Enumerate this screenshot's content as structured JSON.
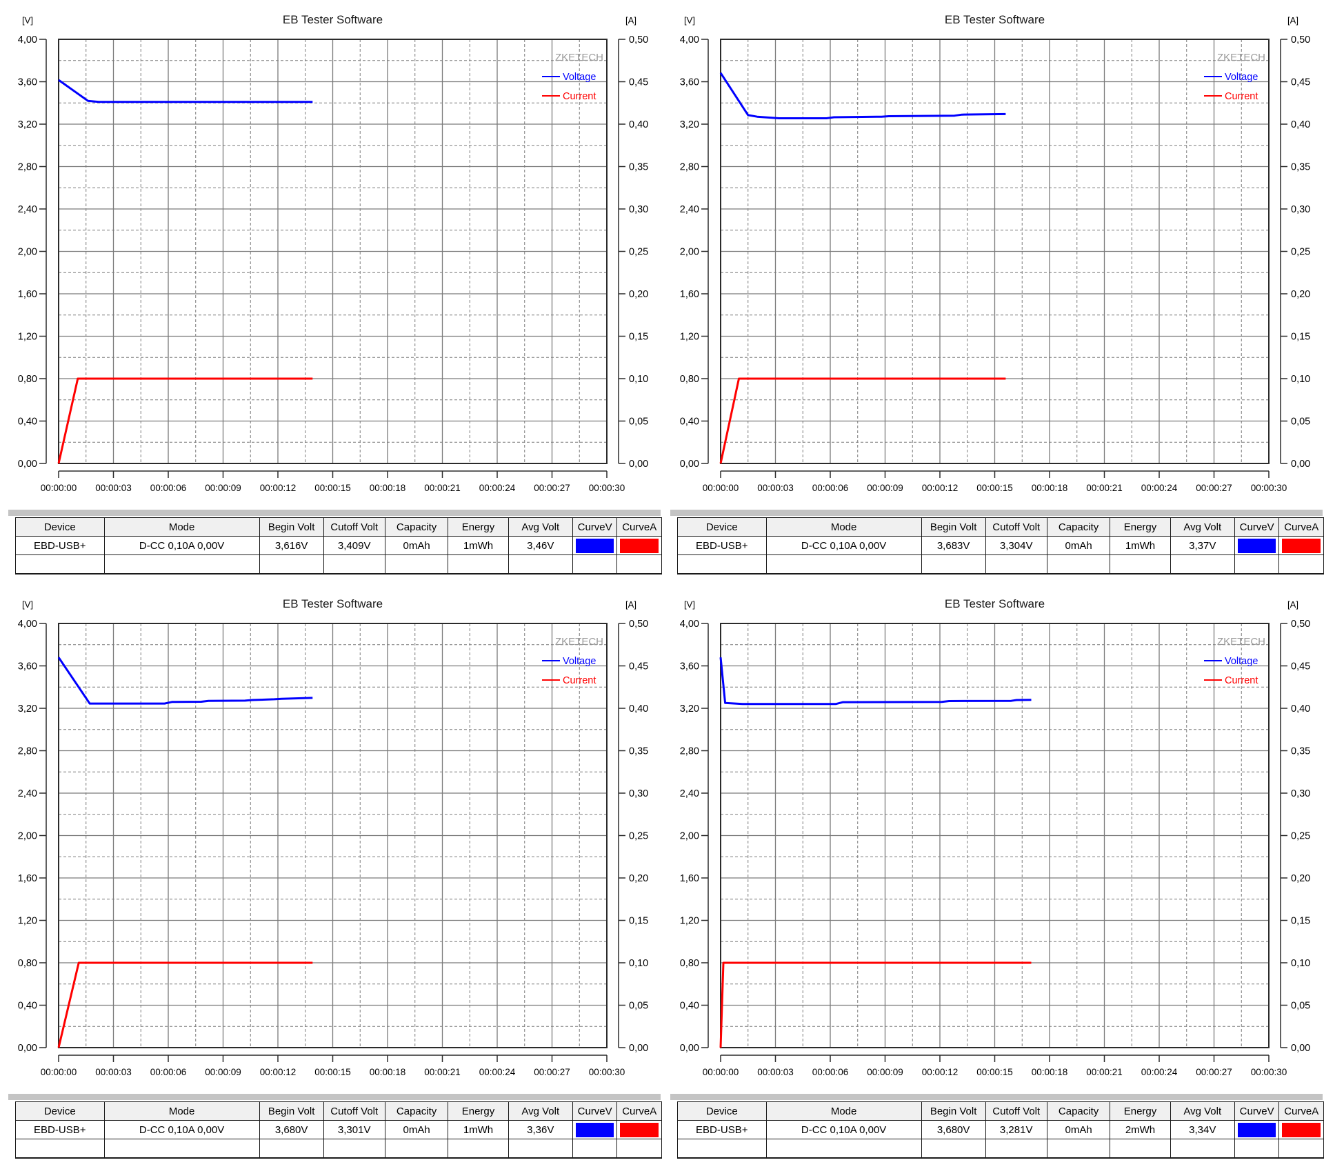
{
  "colors": {
    "voltage": "#0000ff",
    "current": "#ff0000",
    "grid": "#7a7a7a",
    "plot_border": "#2b2b2b",
    "axis_text": "#000000",
    "brand_text": "#9a9a9a",
    "title_text": "#1a1a1a",
    "table_header_bg": "#f0f0f0",
    "table_strip": "#c4c4c4"
  },
  "chart_data": [
    {
      "type": "line",
      "title": "EB Tester Software",
      "left_axis": {
        "unit": "[V]",
        "min": 0,
        "max": 4,
        "major_step": 0.4,
        "minor_step": 0.2
      },
      "right_axis": {
        "unit": "[A]",
        "min": 0,
        "max": 0.5,
        "major_step": 0.05
      },
      "x_axis": {
        "min": 0,
        "max": 30,
        "major_step": 3,
        "minor_step": 1.5,
        "tick_labels": [
          "00:00:00",
          "00:00:03",
          "00:00:06",
          "00:00:09",
          "00:00:12",
          "00:00:15",
          "00:00:18",
          "00:00:21",
          "00:00:24",
          "00:00:27",
          "00:00:30"
        ]
      },
      "legend": {
        "brand": "ZKETECH",
        "position": "top-right",
        "entries": [
          {
            "label": "Voltage",
            "color": "#0000ff"
          },
          {
            "label": "Current",
            "color": "#ff0000"
          }
        ]
      },
      "grid": true,
      "series": [
        {
          "name": "Voltage",
          "axis": "left",
          "color": "#0000ff",
          "points": [
            [
              0,
              3.616
            ],
            [
              1.6,
              3.42
            ],
            [
              2.2,
              3.41
            ],
            [
              13.9,
              3.41
            ]
          ]
        },
        {
          "name": "Current",
          "axis": "right",
          "color": "#ff0000",
          "points": [
            [
              0,
              0
            ],
            [
              1.05,
              0.1
            ],
            [
              13.9,
              0.1
            ]
          ]
        }
      ]
    },
    {
      "type": "line",
      "title": "EB Tester Software",
      "left_axis": {
        "unit": "[V]",
        "min": 0,
        "max": 4,
        "major_step": 0.4,
        "minor_step": 0.2
      },
      "right_axis": {
        "unit": "[A]",
        "min": 0,
        "max": 0.5,
        "major_step": 0.05
      },
      "x_axis": {
        "min": 0,
        "max": 30,
        "major_step": 3,
        "minor_step": 1.5,
        "tick_labels": [
          "00:00:00",
          "00:00:03",
          "00:00:06",
          "00:00:09",
          "00:00:12",
          "00:00:15",
          "00:00:18",
          "00:00:21",
          "00:00:24",
          "00:00:27",
          "00:00:30"
        ]
      },
      "legend": {
        "brand": "ZKETECH",
        "position": "top-right",
        "entries": [
          {
            "label": "Voltage",
            "color": "#0000ff"
          },
          {
            "label": "Current",
            "color": "#ff0000"
          }
        ]
      },
      "grid": true,
      "series": [
        {
          "name": "Voltage",
          "axis": "left",
          "color": "#0000ff",
          "points": [
            [
              0,
              3.683
            ],
            [
              1.5,
              3.285
            ],
            [
              2.0,
              3.27
            ],
            [
              2.8,
              3.26
            ],
            [
              3.2,
              3.255
            ],
            [
              5.8,
              3.255
            ],
            [
              6.2,
              3.265
            ],
            [
              8.8,
              3.27
            ],
            [
              9.2,
              3.275
            ],
            [
              12.8,
              3.28
            ],
            [
              13.2,
              3.29
            ],
            [
              15.6,
              3.295
            ]
          ]
        },
        {
          "name": "Current",
          "axis": "right",
          "color": "#ff0000",
          "points": [
            [
              0,
              0
            ],
            [
              1.0,
              0.1
            ],
            [
              15.6,
              0.1
            ]
          ]
        }
      ]
    },
    {
      "type": "line",
      "title": "EB Tester Software",
      "left_axis": {
        "unit": "[V]",
        "min": 0,
        "max": 4,
        "major_step": 0.4,
        "minor_step": 0.2
      },
      "right_axis": {
        "unit": "[A]",
        "min": 0,
        "max": 0.5,
        "major_step": 0.05
      },
      "x_axis": {
        "min": 0,
        "max": 30,
        "major_step": 3,
        "minor_step": 1.5,
        "tick_labels": [
          "00:00:00",
          "00:00:03",
          "00:00:06",
          "00:00:09",
          "00:00:12",
          "00:00:15",
          "00:00:18",
          "00:00:21",
          "00:00:24",
          "00:00:27",
          "00:00:30"
        ]
      },
      "legend": {
        "brand": "ZKETECH",
        "position": "top-right",
        "entries": [
          {
            "label": "Voltage",
            "color": "#0000ff"
          },
          {
            "label": "Current",
            "color": "#ff0000"
          }
        ]
      },
      "grid": true,
      "series": [
        {
          "name": "Voltage",
          "axis": "left",
          "color": "#0000ff",
          "points": [
            [
              0,
              3.68
            ],
            [
              1.7,
              3.245
            ],
            [
              5.8,
              3.245
            ],
            [
              6.2,
              3.26
            ],
            [
              7.8,
              3.262
            ],
            [
              8.2,
              3.27
            ],
            [
              10.2,
              3.272
            ],
            [
              10.6,
              3.278
            ],
            [
              11.8,
              3.285
            ],
            [
              12.2,
              3.29
            ],
            [
              13.9,
              3.298
            ]
          ]
        },
        {
          "name": "Current",
          "axis": "right",
          "color": "#ff0000",
          "points": [
            [
              0,
              0
            ],
            [
              1.1,
              0.1
            ],
            [
              13.9,
              0.1
            ]
          ]
        }
      ]
    },
    {
      "type": "line",
      "title": "EB Tester Software",
      "left_axis": {
        "unit": "[V]",
        "min": 0,
        "max": 4,
        "major_step": 0.4,
        "minor_step": 0.2
      },
      "right_axis": {
        "unit": "[A]",
        "min": 0,
        "max": 0.5,
        "major_step": 0.05
      },
      "x_axis": {
        "min": 0,
        "max": 30,
        "major_step": 3,
        "minor_step": 1.5,
        "tick_labels": [
          "00:00:00",
          "00:00:03",
          "00:00:06",
          "00:00:09",
          "00:00:12",
          "00:00:15",
          "00:00:18",
          "00:00:21",
          "00:00:24",
          "00:00:27",
          "00:00:30"
        ]
      },
      "legend": {
        "brand": "ZKETECH",
        "position": "top-right",
        "entries": [
          {
            "label": "Voltage",
            "color": "#0000ff"
          },
          {
            "label": "Current",
            "color": "#ff0000"
          }
        ]
      },
      "grid": true,
      "series": [
        {
          "name": "Voltage",
          "axis": "left",
          "color": "#0000ff",
          "points": [
            [
              0,
              3.68
            ],
            [
              0.25,
              3.25
            ],
            [
              1.2,
              3.24
            ],
            [
              6.3,
              3.24
            ],
            [
              6.7,
              3.258
            ],
            [
              12.1,
              3.26
            ],
            [
              12.5,
              3.268
            ],
            [
              15.9,
              3.27
            ],
            [
              16.2,
              3.278
            ],
            [
              17,
              3.28
            ]
          ]
        },
        {
          "name": "Current",
          "axis": "right",
          "color": "#ff0000",
          "points": [
            [
              0,
              0
            ],
            [
              0.15,
              0.1
            ],
            [
              17,
              0.1
            ]
          ]
        }
      ]
    }
  ],
  "tables": [
    {
      "headers": [
        "Device",
        "Mode",
        "Begin Volt",
        "Cutoff Volt",
        "Capacity",
        "Energy",
        "Avg Volt",
        "CurveV",
        "CurveA"
      ],
      "row": {
        "device": "EBD-USB+",
        "mode": "D-CC 0,10A 0,00V",
        "begin_volt": "3,616V",
        "cutoff_volt": "3,409V",
        "capacity": "0mAh",
        "energy": "1mWh",
        "avg_volt": "3,46V",
        "curve_v_color": "#0000ff",
        "curve_a_color": "#ff0000"
      }
    },
    {
      "headers": [
        "Device",
        "Mode",
        "Begin Volt",
        "Cutoff Volt",
        "Capacity",
        "Energy",
        "Avg Volt",
        "CurveV",
        "CurveA"
      ],
      "row": {
        "device": "EBD-USB+",
        "mode": "D-CC 0,10A 0,00V",
        "begin_volt": "3,683V",
        "cutoff_volt": "3,304V",
        "capacity": "0mAh",
        "energy": "1mWh",
        "avg_volt": "3,37V",
        "curve_v_color": "#0000ff",
        "curve_a_color": "#ff0000"
      }
    },
    {
      "headers": [
        "Device",
        "Mode",
        "Begin Volt",
        "Cutoff Volt",
        "Capacity",
        "Energy",
        "Avg Volt",
        "CurveV",
        "CurveA"
      ],
      "row": {
        "device": "EBD-USB+",
        "mode": "D-CC 0,10A 0,00V",
        "begin_volt": "3,680V",
        "cutoff_volt": "3,301V",
        "capacity": "0mAh",
        "energy": "1mWh",
        "avg_volt": "3,36V",
        "curve_v_color": "#0000ff",
        "curve_a_color": "#ff0000"
      }
    },
    {
      "headers": [
        "Device",
        "Mode",
        "Begin Volt",
        "Cutoff Volt",
        "Capacity",
        "Energy",
        "Avg Volt",
        "CurveV",
        "CurveA"
      ],
      "row": {
        "device": "EBD-USB+",
        "mode": "D-CC 0,10A 0,00V",
        "begin_volt": "3,680V",
        "cutoff_volt": "3,281V",
        "capacity": "0mAh",
        "energy": "2mWh",
        "avg_volt": "3,34V",
        "curve_v_color": "#0000ff",
        "curve_a_color": "#ff0000"
      }
    }
  ]
}
